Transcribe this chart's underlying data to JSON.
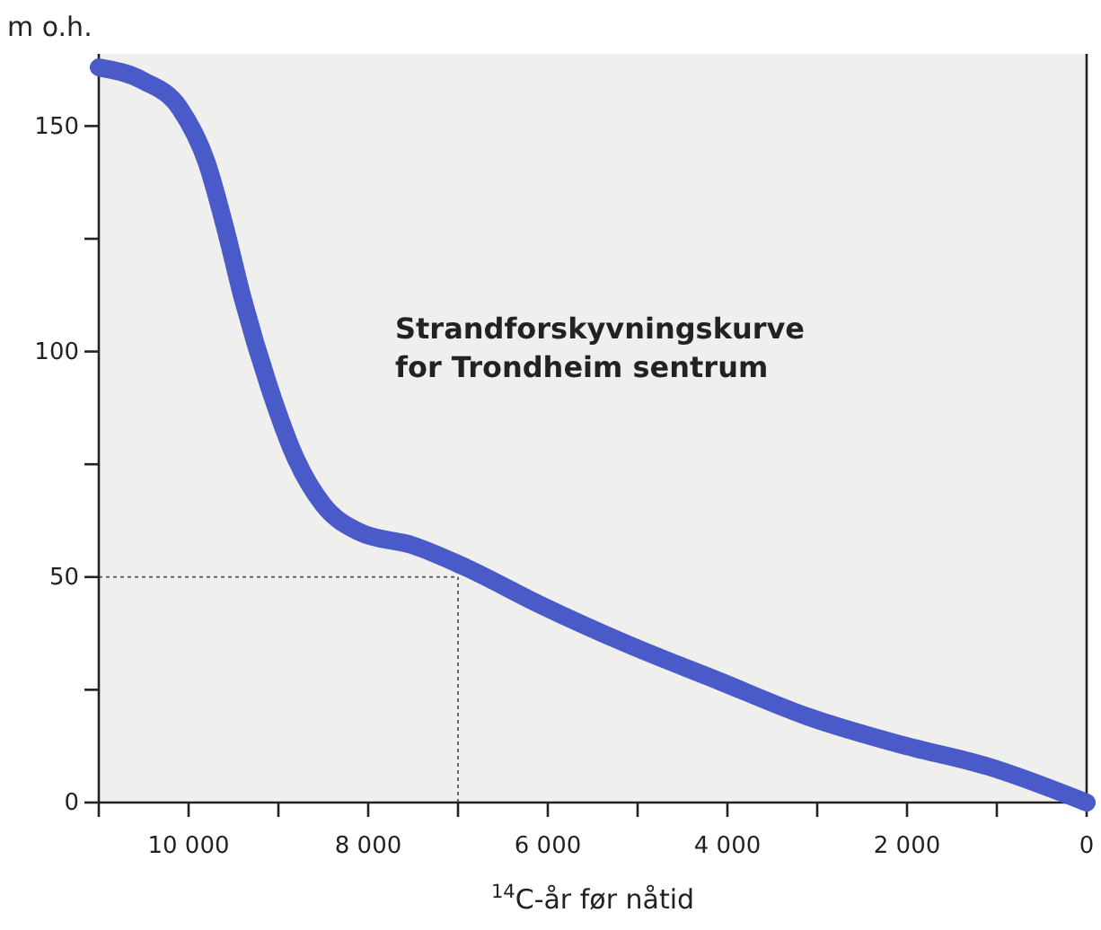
{
  "chart_data": {
    "type": "line",
    "title": "Strandforskyvningskurve for Trondheim sentrum",
    "xlabel": "$^{14}$C-år før nåtid",
    "ylabel": "m o.h.",
    "xlim": [
      11000,
      0
    ],
    "ylim": [
      0,
      166
    ],
    "xticks": [
      {
        "value": 11000,
        "label": null
      },
      {
        "value": 10000,
        "label": "10 000"
      },
      {
        "value": 9000,
        "label": null
      },
      {
        "value": 8000,
        "label": "8 000"
      },
      {
        "value": 7000,
        "label": null
      },
      {
        "value": 6000,
        "label": "6 000"
      },
      {
        "value": 5000,
        "label": null
      },
      {
        "value": 4000,
        "label": "4 000"
      },
      {
        "value": 3000,
        "label": null
      },
      {
        "value": 2000,
        "label": "2 000"
      },
      {
        "value": 1000,
        "label": null
      },
      0
    ],
    "yticks": [
      0,
      {
        "value": 25,
        "label": null
      },
      50,
      {
        "value": 75,
        "label": null
      },
      100,
      {
        "value": 125,
        "label": null
      },
      150
    ],
    "x": [
      11000,
      10500,
      10100,
      9800,
      9600,
      9400,
      9100,
      8800,
      8500,
      8100,
      7500,
      6900,
      6100,
      5100,
      4100,
      3100,
      2100,
      1100,
      0
    ],
    "series": [
      {
        "color": "#4a5ac8",
        "values": [
          163,
          160,
          154,
          142,
          128,
          112,
          92,
          76,
          66,
          60,
          57,
          52,
          44,
          35,
          27,
          19,
          13,
          8,
          0
        ]
      }
    ],
    "ref_lines": [
      {
        "axis": "y",
        "value": 50,
        "line_style": "dotted"
      },
      {
        "axis": "x",
        "value": 7000,
        "line_style": "dotted"
      }
    ],
    "grid": false
  }
}
